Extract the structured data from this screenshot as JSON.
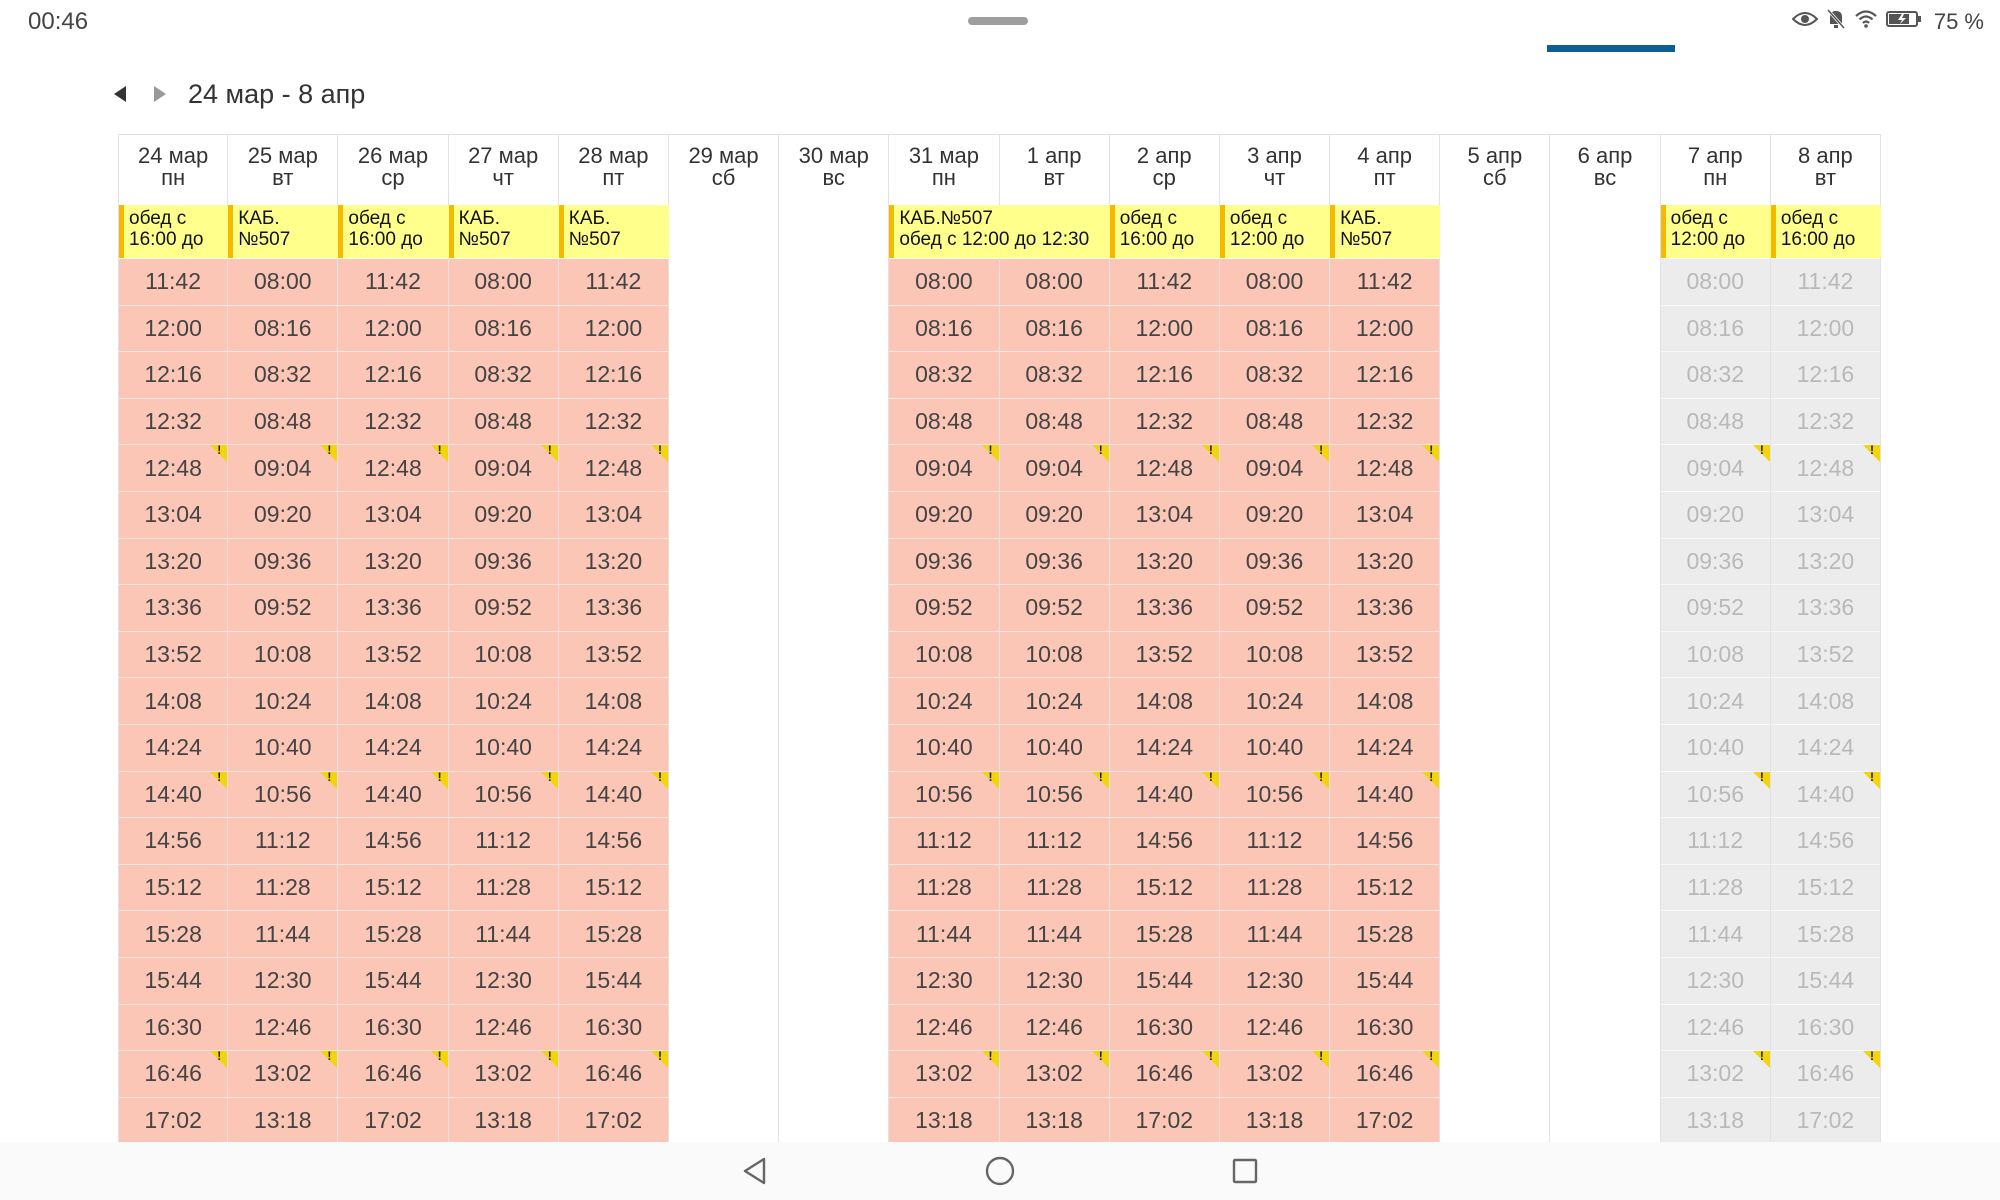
{
  "status_bar": {
    "time": "00:46",
    "battery": "75 %"
  },
  "toolbar": {
    "date_range": "24 мар - 8 апр"
  },
  "days": [
    {
      "date": "24 мар",
      "weekday": "пн",
      "state": "busy",
      "note": "обед с\n16:00 до",
      "slots": [
        "11:42",
        "12:00",
        "12:16",
        "12:32",
        "12:48",
        "13:04",
        "13:20",
        "13:36",
        "13:52",
        "14:08",
        "14:24",
        "14:40",
        "14:56",
        "15:12",
        "15:28",
        "15:44",
        "16:30",
        "16:46",
        "17:02"
      ],
      "flags": [
        4,
        11,
        17
      ]
    },
    {
      "date": "25 мар",
      "weekday": "вт",
      "state": "busy",
      "note": "КАБ.\n№507",
      "slots": [
        "08:00",
        "08:16",
        "08:32",
        "08:48",
        "09:04",
        "09:20",
        "09:36",
        "09:52",
        "10:08",
        "10:24",
        "10:40",
        "10:56",
        "11:12",
        "11:28",
        "11:44",
        "12:30",
        "12:46",
        "13:02",
        "13:18"
      ],
      "flags": [
        4,
        11,
        17
      ]
    },
    {
      "date": "26 мар",
      "weekday": "ср",
      "state": "busy",
      "note": "обед с\n16:00 до",
      "slots": [
        "11:42",
        "12:00",
        "12:16",
        "12:32",
        "12:48",
        "13:04",
        "13:20",
        "13:36",
        "13:52",
        "14:08",
        "14:24",
        "14:40",
        "14:56",
        "15:12",
        "15:28",
        "15:44",
        "16:30",
        "16:46",
        "17:02"
      ],
      "flags": [
        4,
        11,
        17
      ]
    },
    {
      "date": "27 мар",
      "weekday": "чт",
      "state": "busy",
      "note": "КАБ.\n№507",
      "slots": [
        "08:00",
        "08:16",
        "08:32",
        "08:48",
        "09:04",
        "09:20",
        "09:36",
        "09:52",
        "10:08",
        "10:24",
        "10:40",
        "10:56",
        "11:12",
        "11:28",
        "11:44",
        "12:30",
        "12:46",
        "13:02",
        "13:18"
      ],
      "flags": [
        4,
        11,
        17
      ]
    },
    {
      "date": "28 мар",
      "weekday": "пт",
      "state": "busy",
      "note": "КАБ.\n№507",
      "slots": [
        "11:42",
        "12:00",
        "12:16",
        "12:32",
        "12:48",
        "13:04",
        "13:20",
        "13:36",
        "13:52",
        "14:08",
        "14:24",
        "14:40",
        "14:56",
        "15:12",
        "15:28",
        "15:44",
        "16:30",
        "16:46",
        "17:02"
      ],
      "flags": [
        4,
        11,
        17
      ]
    },
    {
      "date": "29 мар",
      "weekday": "сб",
      "state": "empty",
      "note": "",
      "slots": [],
      "flags": []
    },
    {
      "date": "30 мар",
      "weekday": "вс",
      "state": "empty",
      "note": "",
      "slots": [],
      "flags": []
    },
    {
      "date": "31 мар",
      "weekday": "пн",
      "state": "busy",
      "note": "КАБ.№507\nобед с 12:00 до 12:30",
      "note_span": 2,
      "slots": [
        "08:00",
        "08:16",
        "08:32",
        "08:48",
        "09:04",
        "09:20",
        "09:36",
        "09:52",
        "10:08",
        "10:24",
        "10:40",
        "10:56",
        "11:12",
        "11:28",
        "11:44",
        "12:30",
        "12:46",
        "13:02",
        "13:18"
      ],
      "flags": [
        4,
        11,
        17
      ]
    },
    {
      "date": "1 апр",
      "weekday": "вт",
      "state": "busy",
      "note": "",
      "slots": [
        "08:00",
        "08:16",
        "08:32",
        "08:48",
        "09:04",
        "09:20",
        "09:36",
        "09:52",
        "10:08",
        "10:24",
        "10:40",
        "10:56",
        "11:12",
        "11:28",
        "11:44",
        "12:30",
        "12:46",
        "13:02",
        "13:18"
      ],
      "flags": [
        4,
        11,
        17
      ]
    },
    {
      "date": "2 апр",
      "weekday": "ср",
      "state": "busy",
      "note": "обед с\n16:00 до",
      "slots": [
        "11:42",
        "12:00",
        "12:16",
        "12:32",
        "12:48",
        "13:04",
        "13:20",
        "13:36",
        "13:52",
        "14:08",
        "14:24",
        "14:40",
        "14:56",
        "15:12",
        "15:28",
        "15:44",
        "16:30",
        "16:46",
        "17:02"
      ],
      "flags": [
        4,
        11,
        17
      ]
    },
    {
      "date": "3 апр",
      "weekday": "чт",
      "state": "busy",
      "note": "обед с\n12:00 до",
      "slots": [
        "08:00",
        "08:16",
        "08:32",
        "08:48",
        "09:04",
        "09:20",
        "09:36",
        "09:52",
        "10:08",
        "10:24",
        "10:40",
        "10:56",
        "11:12",
        "11:28",
        "11:44",
        "12:30",
        "12:46",
        "13:02",
        "13:18"
      ],
      "flags": [
        4,
        11,
        17
      ]
    },
    {
      "date": "4 апр",
      "weekday": "пт",
      "state": "busy",
      "note": "КАБ.\n№507",
      "slots": [
        "11:42",
        "12:00",
        "12:16",
        "12:32",
        "12:48",
        "13:04",
        "13:20",
        "13:36",
        "13:52",
        "14:08",
        "14:24",
        "14:40",
        "14:56",
        "15:12",
        "15:28",
        "15:44",
        "16:30",
        "16:46",
        "17:02"
      ],
      "flags": [
        4,
        11,
        17
      ]
    },
    {
      "date": "5 апр",
      "weekday": "сб",
      "state": "empty",
      "note": "",
      "slots": [],
      "flags": []
    },
    {
      "date": "6 апр",
      "weekday": "вс",
      "state": "empty",
      "note": "",
      "slots": [],
      "flags": []
    },
    {
      "date": "7 апр",
      "weekday": "пн",
      "state": "past",
      "note": "обед с\n12:00 до",
      "slots": [
        "08:00",
        "08:16",
        "08:32",
        "08:48",
        "09:04",
        "09:20",
        "09:36",
        "09:52",
        "10:08",
        "10:24",
        "10:40",
        "10:56",
        "11:12",
        "11:28",
        "11:44",
        "12:30",
        "12:46",
        "13:02",
        "13:18"
      ],
      "flags": [
        4,
        11,
        17
      ]
    },
    {
      "date": "8 апр",
      "weekday": "вт",
      "state": "past",
      "note": "обед с\n16:00 до",
      "slots": [
        "11:42",
        "12:00",
        "12:16",
        "12:32",
        "12:48",
        "13:04",
        "13:20",
        "13:36",
        "13:52",
        "14:08",
        "14:24",
        "14:40",
        "14:56",
        "15:12",
        "15:28",
        "15:44",
        "16:30",
        "16:46",
        "17:02"
      ],
      "flags": [
        4,
        11,
        17
      ]
    }
  ],
  "colors": {
    "busy": "#fbc6b6",
    "past": "#ececec",
    "note_bg": "#ffff8c",
    "note_bar": "#f7b900",
    "flag": "#f4d40c",
    "accent": "#0d5d96"
  },
  "icons": {
    "nav_prev": "caret-left-icon",
    "nav_next": "caret-right-icon",
    "back": "back-triangle-icon",
    "home": "home-circle-icon",
    "recents": "recents-square-icon"
  }
}
